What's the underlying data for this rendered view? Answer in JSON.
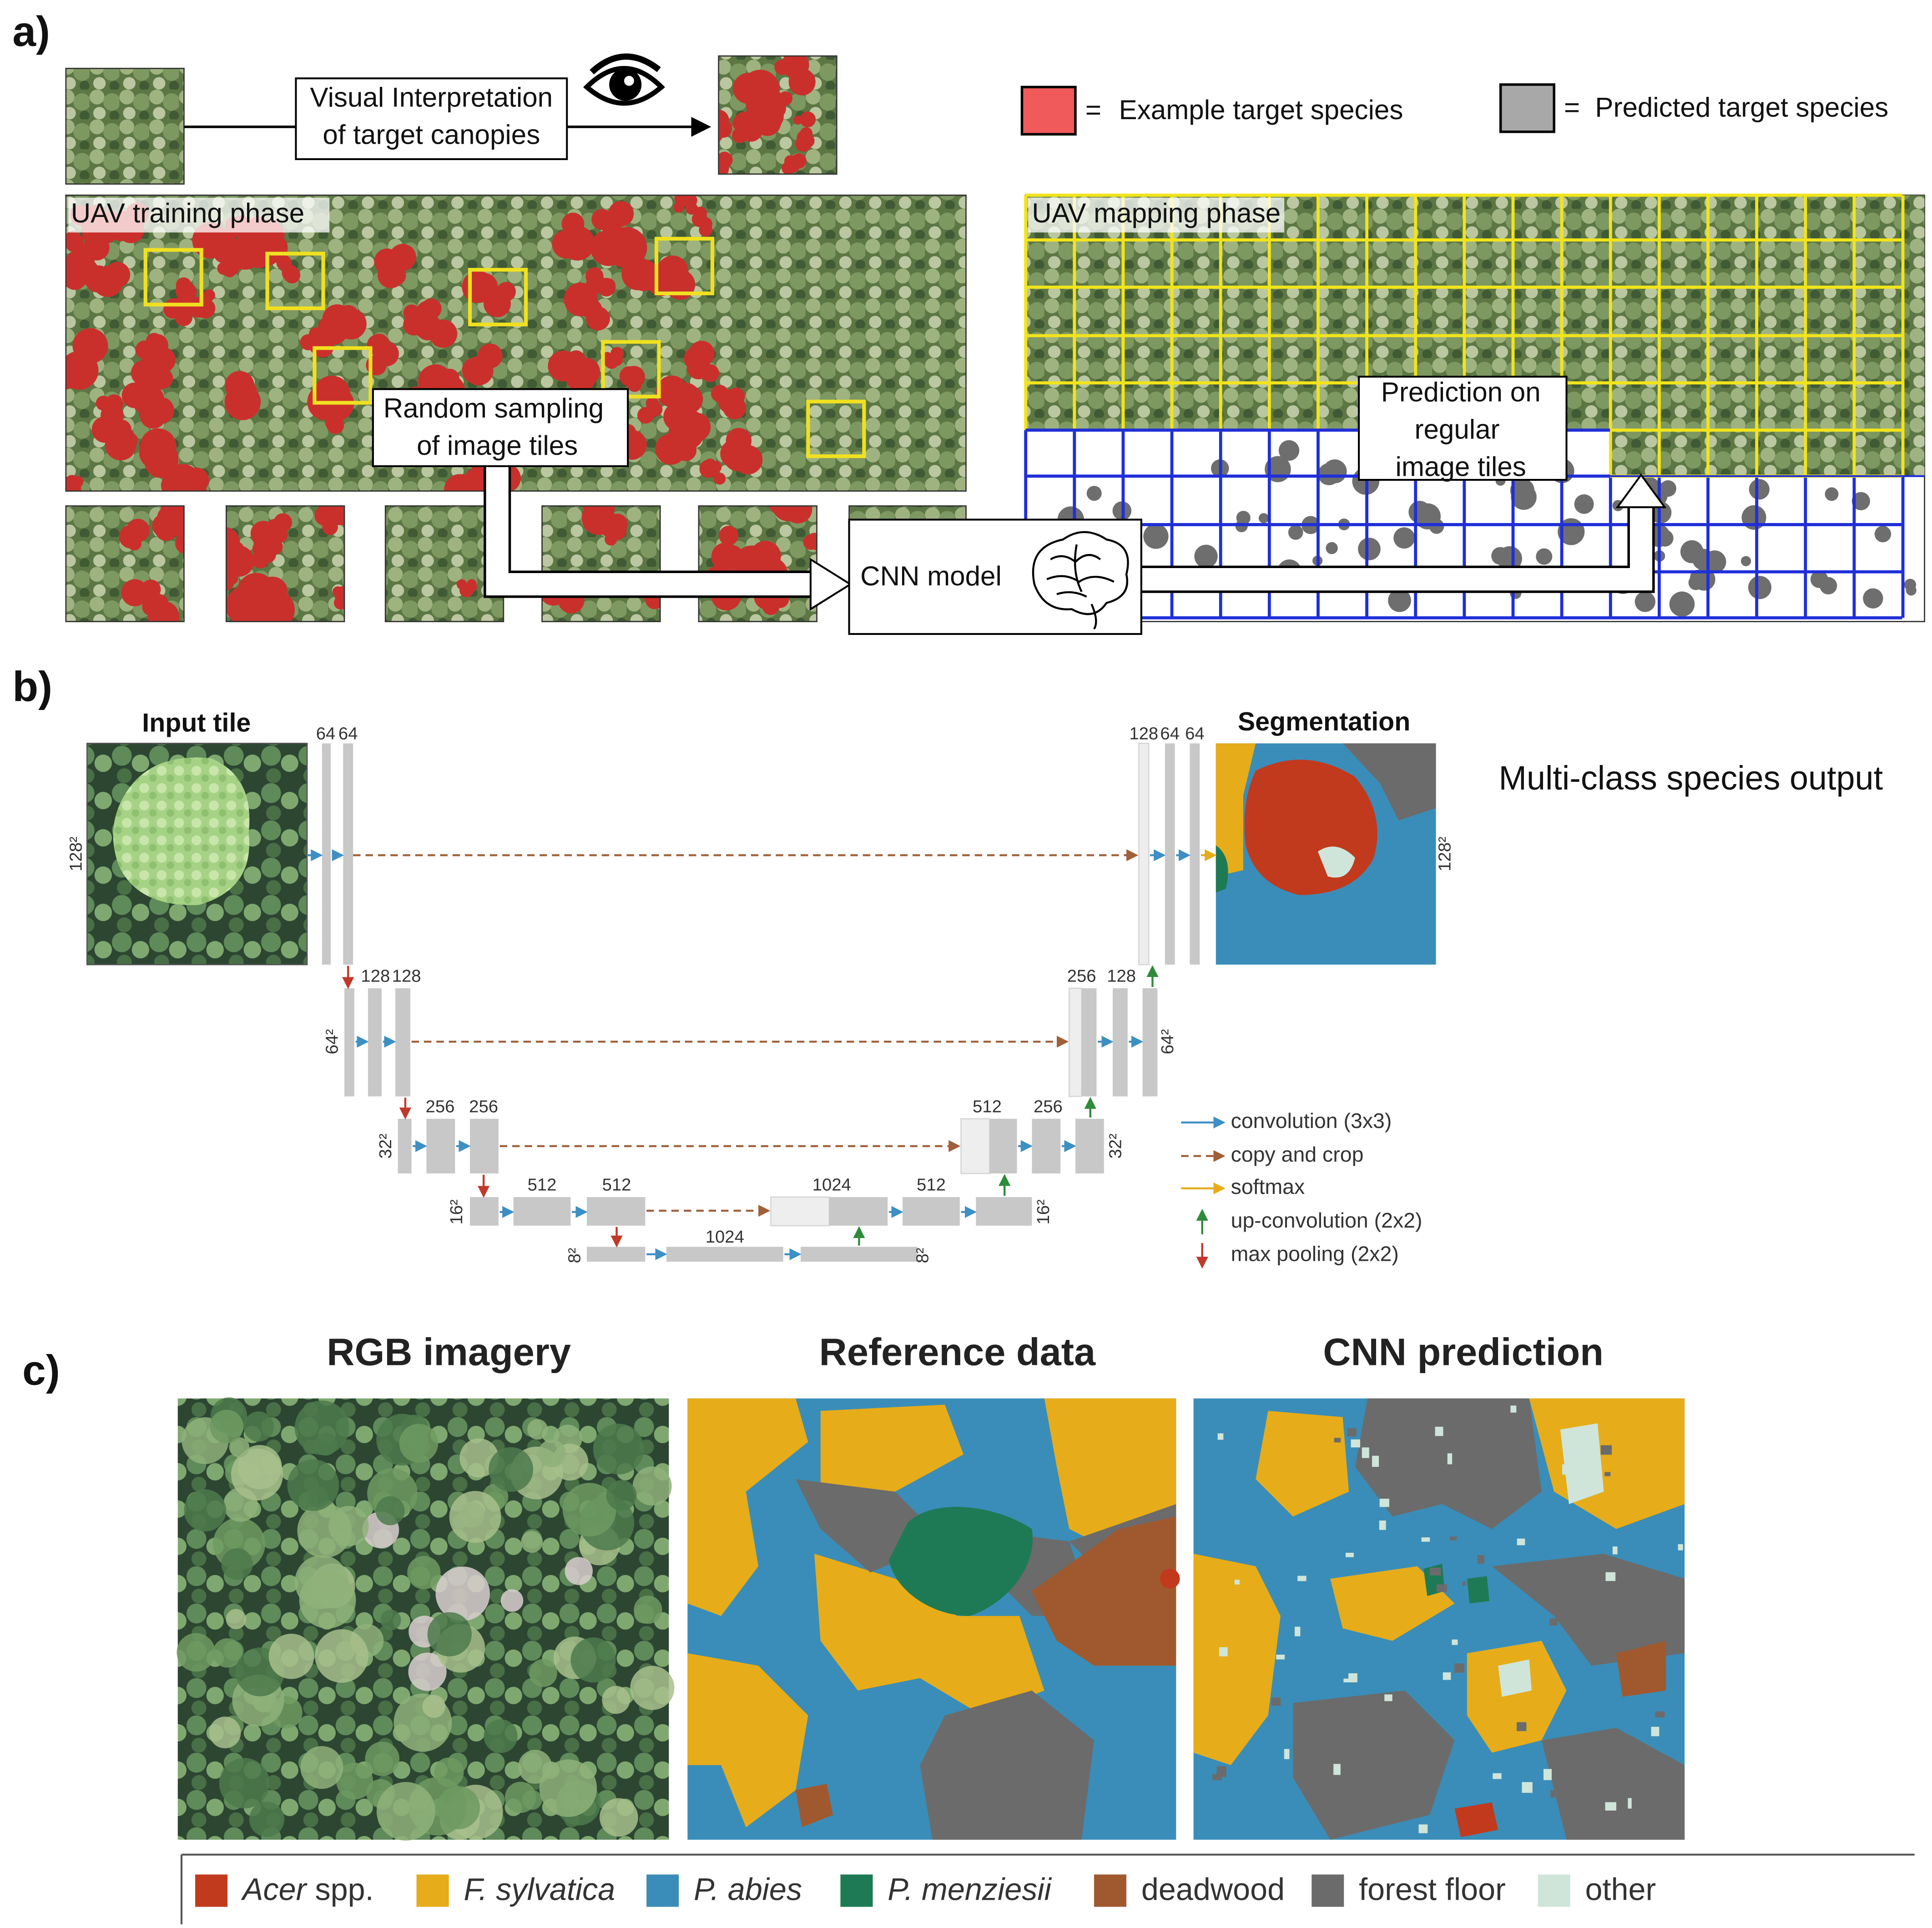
{
  "panel_a": {
    "label": "a)",
    "interpretation": [
      "Visual Interpretation",
      "of target canopies"
    ],
    "legend": [
      {
        "symbol": "=",
        "text": "Example target species"
      },
      {
        "symbol": "=",
        "text": "Predicted target species"
      }
    ],
    "training_title": "UAV training phase",
    "mapping_title": "UAV mapping phase",
    "sampling": [
      "Random sampling",
      "of image tiles"
    ],
    "prediction": [
      "Prediction on",
      "regular",
      "image tiles"
    ],
    "model": "CNN model"
  },
  "panel_b": {
    "label": "b)",
    "input_title": "Input tile",
    "output_title": "Segmentation",
    "output_note": "Multi-class species output",
    "sizes": [
      "128²",
      "64²",
      "32²",
      "16²",
      "8²"
    ],
    "encoder_channels": [
      [
        "64",
        "64"
      ],
      [
        "128",
        "128"
      ],
      [
        "256",
        "256"
      ],
      [
        "512",
        "512"
      ],
      [
        "1024"
      ]
    ],
    "decoder_channels": [
      [
        "128",
        "64",
        "64"
      ],
      [
        "256",
        "128"
      ],
      [
        "512",
        "256"
      ],
      [
        "1024",
        "512"
      ]
    ],
    "legend": [
      "convolution (3x3)",
      "copy and crop",
      "softmax",
      "up-convolution (2x2)",
      "max pooling (2x2)"
    ]
  },
  "panel_c": {
    "label": "c)",
    "titles": [
      "RGB imagery",
      "Reference data",
      "CNN prediction"
    ],
    "legend": [
      {
        "italic": "Acer",
        "text": "spp.",
        "color": "#c13a1d"
      },
      {
        "italic": "F. sylvatica",
        "color": "#e6ac1a"
      },
      {
        "italic": "P. abies",
        "color": "#3a8db8"
      },
      {
        "italic": "P. menziesii",
        "color": "#1e7a55"
      },
      {
        "text": "deadwood",
        "color": "#a0592e"
      },
      {
        "text": "forest floor",
        "color": "#6b6b6b"
      },
      {
        "text": "other",
        "color": "#cfe5da"
      }
    ]
  }
}
